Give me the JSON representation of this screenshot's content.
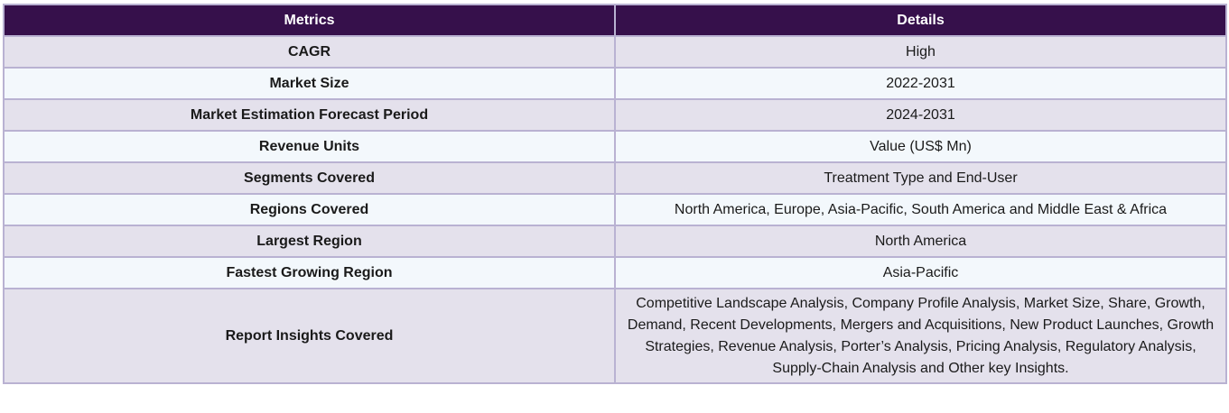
{
  "table": {
    "headers": [
      "Metrics",
      "Details"
    ],
    "rows": [
      {
        "metric": "CAGR",
        "detail": "High"
      },
      {
        "metric": "Market Size",
        "detail": "2022-2031"
      },
      {
        "metric": "Market Estimation Forecast Period",
        "detail": "2024-2031"
      },
      {
        "metric": "Revenue Units",
        "detail": "Value (US$ Mn)"
      },
      {
        "metric": "Segments Covered",
        "detail": "Treatment Type and End-User"
      },
      {
        "metric": "Regions Covered",
        "detail": "North America, Europe, Asia-Pacific, South America and Middle East & Africa"
      },
      {
        "metric": "Largest Region",
        "detail": "North America"
      },
      {
        "metric": "Fastest Growing Region",
        "detail": "Asia-Pacific"
      },
      {
        "metric": "Report Insights Covered",
        "detail": "Competitive Landscape Analysis, Company Profile Analysis, Market Size, Share, Growth, Demand, Recent Developments, Mergers and Acquisitions, New Product Launches, Growth Strategies, Revenue Analysis, Porter’s Analysis, Pricing Analysis, Regulatory Analysis, Supply-Chain Analysis and Other key Insights."
      }
    ]
  },
  "colors": {
    "header_bg": "#36104b",
    "row_odd_bg": "#e4e1ec",
    "row_even_bg": "#f3f8fc",
    "border": "#b9b2d2"
  }
}
